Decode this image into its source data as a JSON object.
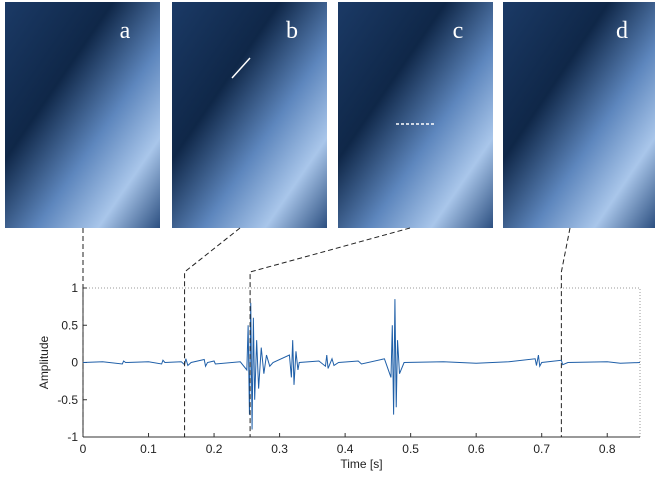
{
  "chart_data": {
    "type": "line",
    "panel_labels": [
      "a",
      "b",
      "c",
      "d"
    ],
    "markers": [
      0,
      0.155,
      0.255,
      0.73
    ],
    "xlabel": "Time [s]",
    "ylabel": "Amplitude",
    "xlim": [
      0,
      0.85
    ],
    "ylim": [
      -1,
      1
    ],
    "xticks": [
      0,
      0.1,
      0.2,
      0.3,
      0.4,
      0.5,
      0.6,
      0.7,
      0.8
    ],
    "yticks": [
      -1,
      -0.5,
      0,
      0.5,
      1
    ],
    "series": [
      {
        "color": "#1f5fa8",
        "x": [
          0,
          0.03,
          0.06,
          0.062,
          0.065,
          0.1,
          0.12,
          0.122,
          0.125,
          0.15,
          0.155,
          0.157,
          0.16,
          0.165,
          0.185,
          0.187,
          0.19,
          0.2,
          0.202,
          0.24,
          0.25,
          0.252,
          0.254,
          0.256,
          0.258,
          0.26,
          0.262,
          0.265,
          0.268,
          0.272,
          0.276,
          0.28,
          0.285,
          0.29,
          0.315,
          0.318,
          0.32,
          0.322,
          0.325,
          0.328,
          0.33,
          0.36,
          0.37,
          0.372,
          0.374,
          0.38,
          0.383,
          0.39,
          0.42,
          0.425,
          0.46,
          0.47,
          0.472,
          0.474,
          0.476,
          0.478,
          0.48,
          0.483,
          0.49,
          0.55,
          0.6,
          0.65,
          0.69,
          0.692,
          0.695,
          0.697,
          0.7,
          0.73,
          0.732,
          0.74,
          0.8,
          0.82,
          0.85
        ],
        "values": [
          0,
          0.01,
          -0.02,
          0.02,
          0,
          0.01,
          -0.02,
          0.03,
          0,
          0.01,
          -0.03,
          0.05,
          -0.04,
          0,
          0.04,
          -0.05,
          0,
          0.02,
          -0.02,
          0.01,
          -0.1,
          0.5,
          -0.7,
          0.8,
          -0.9,
          0.6,
          -0.5,
          0.3,
          -0.35,
          0.2,
          -0.15,
          0.1,
          -0.05,
          0,
          0.1,
          -0.2,
          0.3,
          -0.3,
          0.15,
          -0.1,
          0,
          0.02,
          -0.05,
          0.1,
          -0.08,
          0.05,
          -0.04,
          0,
          0.02,
          -0.02,
          0.05,
          -0.2,
          0.5,
          -0.7,
          0.85,
          -0.6,
          0.3,
          -0.15,
          0,
          0.01,
          -0.01,
          0.01,
          0.05,
          -0.04,
          0.1,
          -0.05,
          0,
          0.03,
          -0.03,
          0,
          0.01,
          -0.01,
          0
        ]
      }
    ]
  }
}
